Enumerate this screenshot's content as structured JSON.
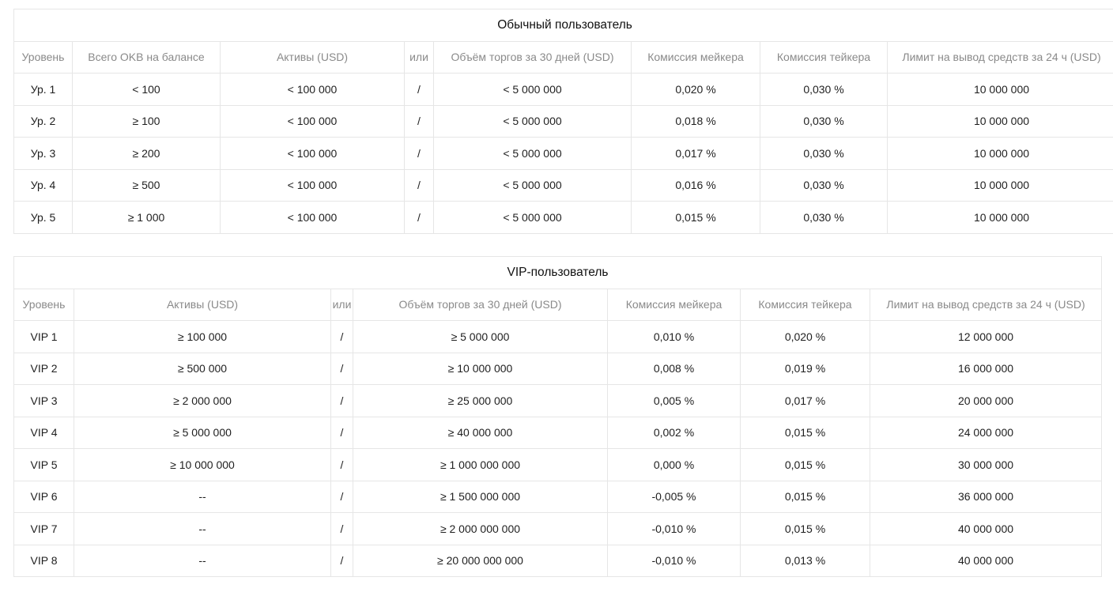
{
  "regular": {
    "title": "Обычный пользователь",
    "headers": [
      "Уровень",
      "Всего OKB на балансе",
      "Активы (USD)",
      "или",
      "Объём торгов за 30 дней (USD)",
      "Комиссия мейкера",
      "Комиссия тейкера",
      "Лимит на вывод средств за 24 ч (USD)"
    ],
    "rows": [
      [
        "Ур. 1",
        "< 100",
        "< 100 000",
        "/",
        "< 5 000 000",
        "0,020 %",
        "0,030 %",
        "10 000 000"
      ],
      [
        "Ур. 2",
        "≥ 100",
        "< 100 000",
        "/",
        "< 5 000 000",
        "0,018 %",
        "0,030 %",
        "10 000 000"
      ],
      [
        "Ур. 3",
        "≥ 200",
        "< 100 000",
        "/",
        "< 5 000 000",
        "0,017 %",
        "0,030 %",
        "10 000 000"
      ],
      [
        "Ур. 4",
        "≥ 500",
        "< 100 000",
        "/",
        "< 5 000 000",
        "0,016 %",
        "0,030 %",
        "10 000 000"
      ],
      [
        "Ур. 5",
        "≥ 1 000",
        "< 100 000",
        "/",
        "< 5 000 000",
        "0,015 %",
        "0,030 %",
        "10 000 000"
      ]
    ]
  },
  "vip": {
    "title": "VIP-пользователь",
    "headers": [
      "Уровень",
      "Активы (USD)",
      "или",
      "Объём торгов за 30 дней (USD)",
      "Комиссия мейкера",
      "Комиссия тейкера",
      "Лимит на вывод средств за 24 ч (USD)"
    ],
    "rows": [
      [
        "VIP 1",
        "≥ 100 000",
        "/",
        "≥ 5 000 000",
        "0,010 %",
        "0,020 %",
        "12 000 000"
      ],
      [
        "VIP 2",
        "≥ 500 000",
        "/",
        "≥ 10 000 000",
        "0,008 %",
        "0,019 %",
        "16 000 000"
      ],
      [
        "VIP 3",
        "≥ 2 000 000",
        "/",
        "≥ 25 000 000",
        "0,005 %",
        "0,017 %",
        "20 000 000"
      ],
      [
        "VIP 4",
        "≥ 5 000 000",
        "/",
        "≥ 40 000 000",
        "0,002 %",
        "0,015 %",
        "24 000 000"
      ],
      [
        "VIP 5",
        "≥ 10 000 000",
        "/",
        "≥ 1 000 000 000",
        "0,000 %",
        "0,015 %",
        "30 000 000"
      ],
      [
        "VIP 6",
        "--",
        "/",
        "≥ 1 500 000 000",
        "-0,005 %",
        "0,015 %",
        "36 000 000"
      ],
      [
        "VIP 7",
        "--",
        "/",
        "≥ 2 000 000 000",
        "-0,010 %",
        "0,015 %",
        "40 000 000"
      ],
      [
        "VIP 8",
        "--",
        "/",
        "≥ 20 000 000 000",
        "-0,010 %",
        "0,013 %",
        "40 000 000"
      ]
    ]
  }
}
